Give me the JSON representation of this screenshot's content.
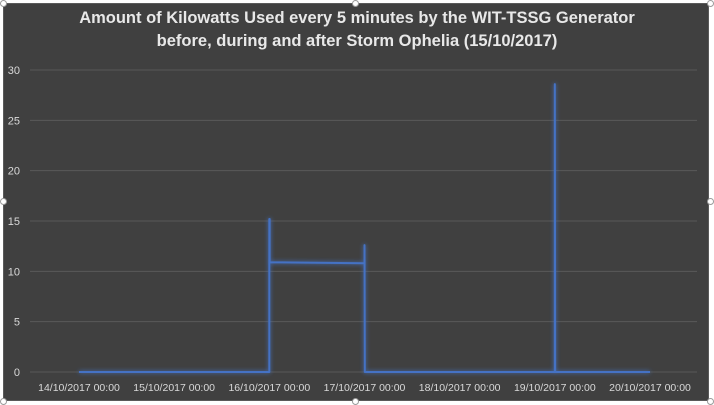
{
  "chart_data": {
    "type": "line",
    "title_lines": [
      "Amount of Kilowatts Used every 5 minutes by the WIT-TSSG Generator",
      "before, during and after Storm Ophelia (15/10/2017)"
    ],
    "xlabel": "",
    "ylabel": "",
    "ylim": [
      0,
      30
    ],
    "yticks": [
      0,
      5,
      10,
      15,
      20,
      25,
      30
    ],
    "xlim": [
      "2017-10-14 00:00",
      "2017-10-20 00:00"
    ],
    "xtick_labels": [
      "14/10/2017 00:00",
      "15/10/2017 00:00",
      "16/10/2017 00:00",
      "17/10/2017 00:00",
      "18/10/2017 00:00",
      "19/10/2017 00:00",
      "20/10/2017 00:00"
    ],
    "grid": true,
    "legend": "none",
    "series": [
      {
        "color": "#4472c4",
        "x": [
          "2017-10-14 00:00",
          "2017-10-16 00:00",
          "2017-10-16 00:00",
          "2017-10-16 00:05",
          "2017-10-16 00:05",
          "2017-10-16 23:55",
          "2017-10-17 00:00",
          "2017-10-17 00:00",
          "2017-10-17 00:05",
          "2017-10-19 00:00",
          "2017-10-19 00:00",
          "2017-10-19 00:05",
          "2017-10-20 00:00"
        ],
        "y": [
          0,
          0,
          15.2,
          15.2,
          10.9,
          10.8,
          10.8,
          12.6,
          0,
          0,
          28.6,
          0,
          0
        ]
      }
    ]
  },
  "colors": {
    "background": "#404040",
    "grid": "#595959",
    "text": "#d9d9d9",
    "line": "#4472c4"
  }
}
